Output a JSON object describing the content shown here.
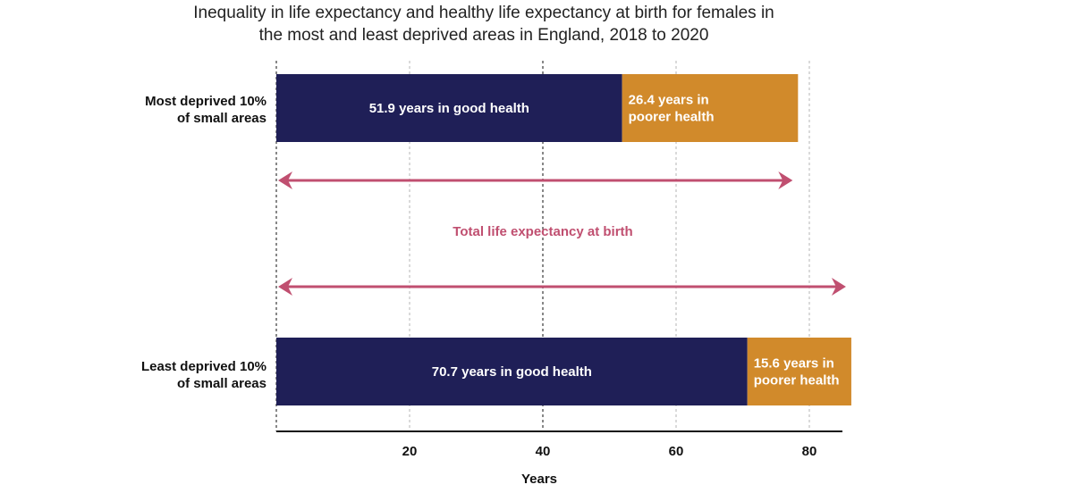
{
  "chart_data": {
    "type": "bar",
    "stacked": true,
    "orientation": "horizontal",
    "title_lines": [
      "Inequality in life expectancy and healthy life expectancy at birth for females in",
      "the most and least deprived areas in England, 2018 to 2020"
    ],
    "categories": [
      {
        "lines": [
          "Most deprived 10%",
          "of small areas"
        ]
      },
      {
        "lines": [
          "Least deprived 10%",
          "of small areas"
        ]
      }
    ],
    "series": [
      {
        "values": [
          51.9,
          70.7
        ],
        "color": "#1f1f57",
        "labels": [
          [
            "51.9 years in good health"
          ],
          [
            "70.7 years in good health"
          ]
        ]
      },
      {
        "values": [
          26.4,
          15.6
        ],
        "color": "#d18a2b",
        "labels": [
          [
            "26.4 years in",
            "poorer health"
          ],
          [
            "15.6 years in",
            "poorer health"
          ]
        ]
      }
    ],
    "annotation": {
      "text": "Total life expectancy at birth",
      "color": "#c04f70"
    },
    "xlabel": "Years",
    "xticks": [
      20,
      40,
      60,
      80
    ],
    "xlim": [
      0,
      86
    ],
    "grid": true
  }
}
